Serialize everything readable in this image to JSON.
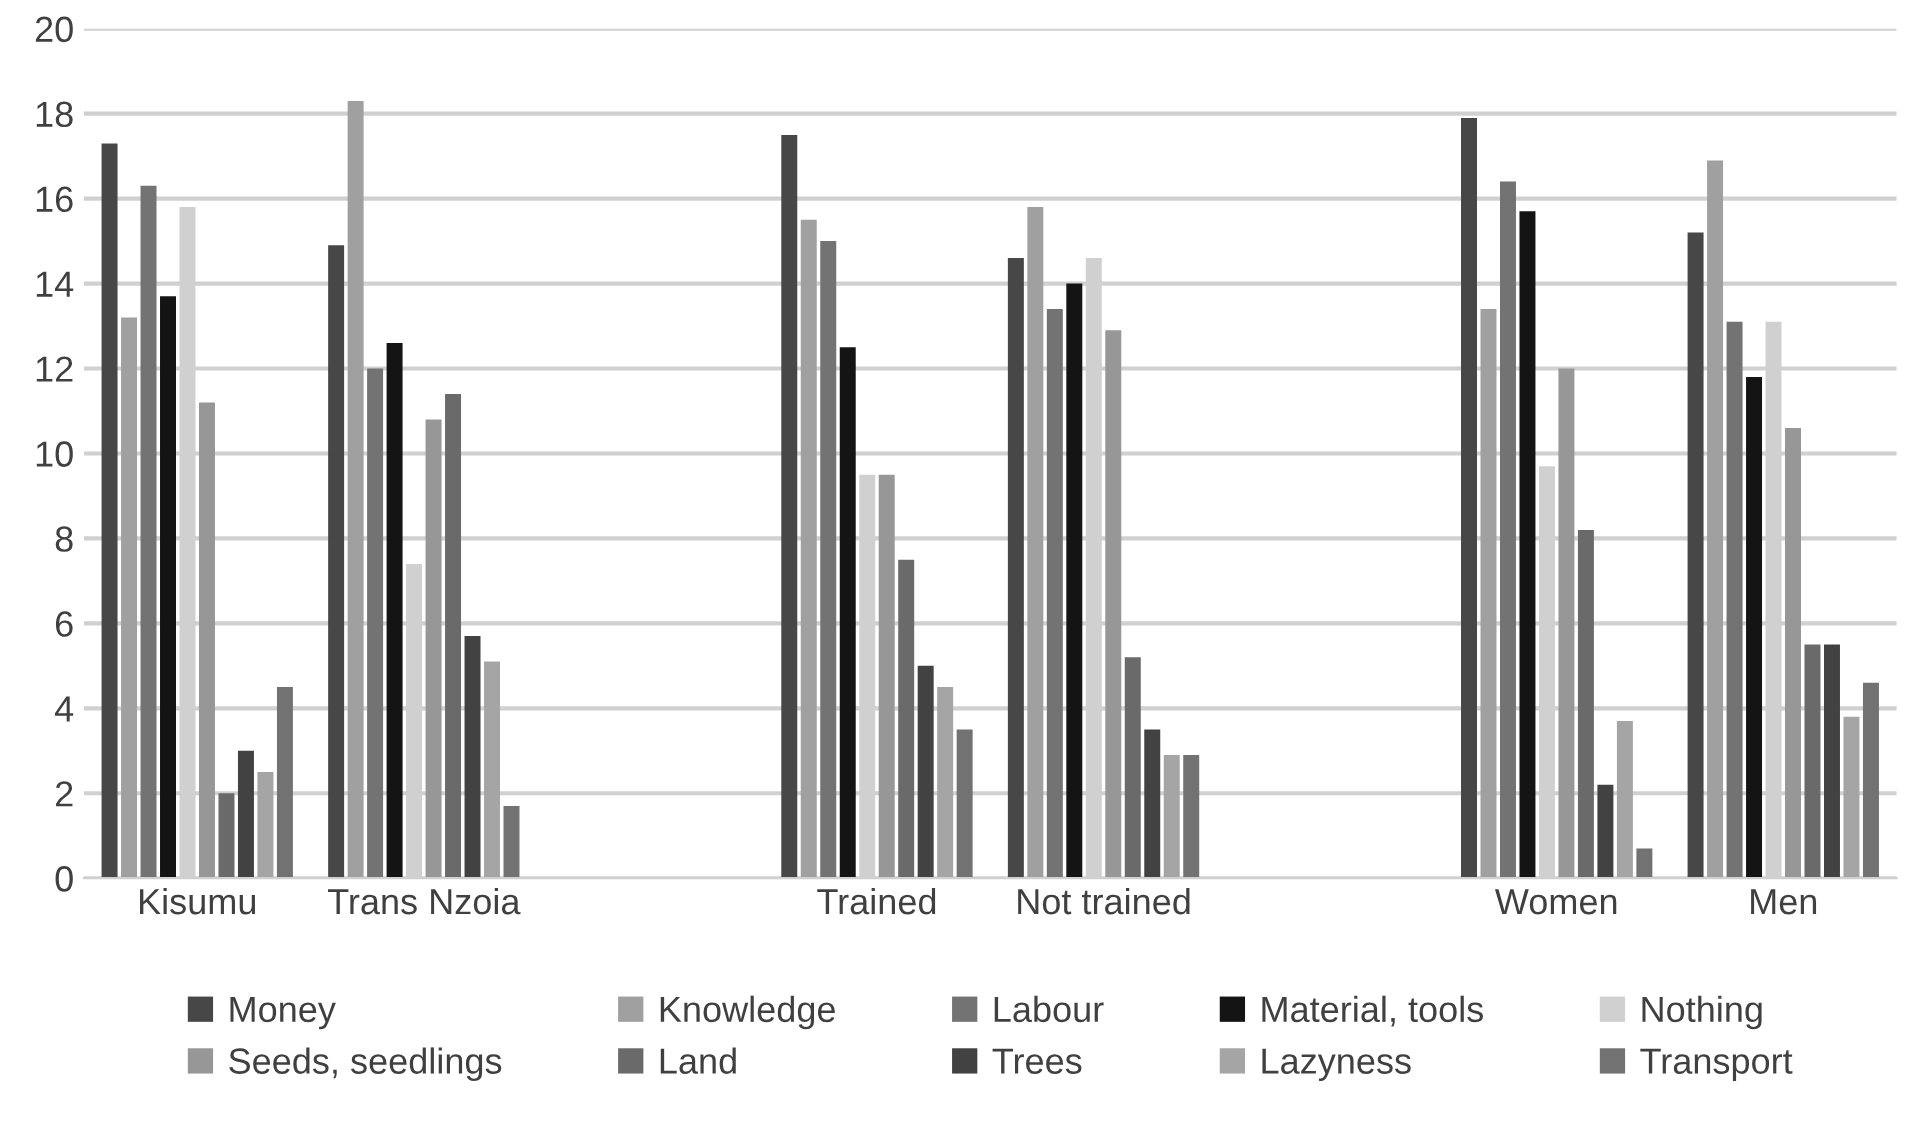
{
  "chart_data": {
    "type": "bar",
    "categories": [
      "Kisumu",
      "Trans Nzoia",
      null,
      "Trained",
      "Not trained",
      null,
      "Women",
      "Men"
    ],
    "series": [
      {
        "name": "Money",
        "color": "#474747",
        "values": [
          17.3,
          14.9,
          null,
          17.5,
          14.6,
          null,
          17.9,
          15.2
        ]
      },
      {
        "name": "Knowledge",
        "color": "#a0a0a0",
        "values": [
          13.2,
          18.3,
          null,
          15.5,
          15.8,
          null,
          13.4,
          16.9
        ]
      },
      {
        "name": "Labour",
        "color": "#737373",
        "values": [
          16.3,
          12.0,
          null,
          15.0,
          13.4,
          null,
          16.4,
          13.1
        ]
      },
      {
        "name": "Material, tools",
        "color": "#141414",
        "values": [
          13.7,
          12.6,
          null,
          12.5,
          14.0,
          null,
          15.7,
          11.8
        ]
      },
      {
        "name": "Nothing",
        "color": "#d0d0d0",
        "values": [
          15.8,
          7.4,
          null,
          9.5,
          14.6,
          null,
          9.7,
          13.1
        ]
      },
      {
        "name": "Seeds, seedlings",
        "color": "#979797",
        "values": [
          11.2,
          10.8,
          null,
          9.5,
          12.9,
          null,
          12.0,
          10.6
        ]
      },
      {
        "name": "Land",
        "color": "#6a6a6a",
        "values": [
          2.0,
          11.4,
          null,
          7.5,
          5.2,
          null,
          8.2,
          5.5
        ]
      },
      {
        "name": "Trees",
        "color": "#424242",
        "values": [
          3.0,
          5.7,
          null,
          5.0,
          3.5,
          null,
          2.2,
          5.5
        ]
      },
      {
        "name": "Lazyness",
        "color": "#a5a5a5",
        "values": [
          2.5,
          5.1,
          null,
          4.5,
          2.9,
          null,
          3.7,
          3.8
        ]
      },
      {
        "name": "Transport",
        "color": "#727272",
        "values": [
          4.5,
          1.7,
          null,
          3.5,
          2.9,
          null,
          0.7,
          4.6
        ]
      }
    ],
    "ylim": [
      0,
      20
    ],
    "yticks": [
      0,
      2,
      4,
      6,
      8,
      10,
      12,
      14,
      16,
      18,
      20
    ],
    "grid": "y",
    "legend": "bottom"
  }
}
